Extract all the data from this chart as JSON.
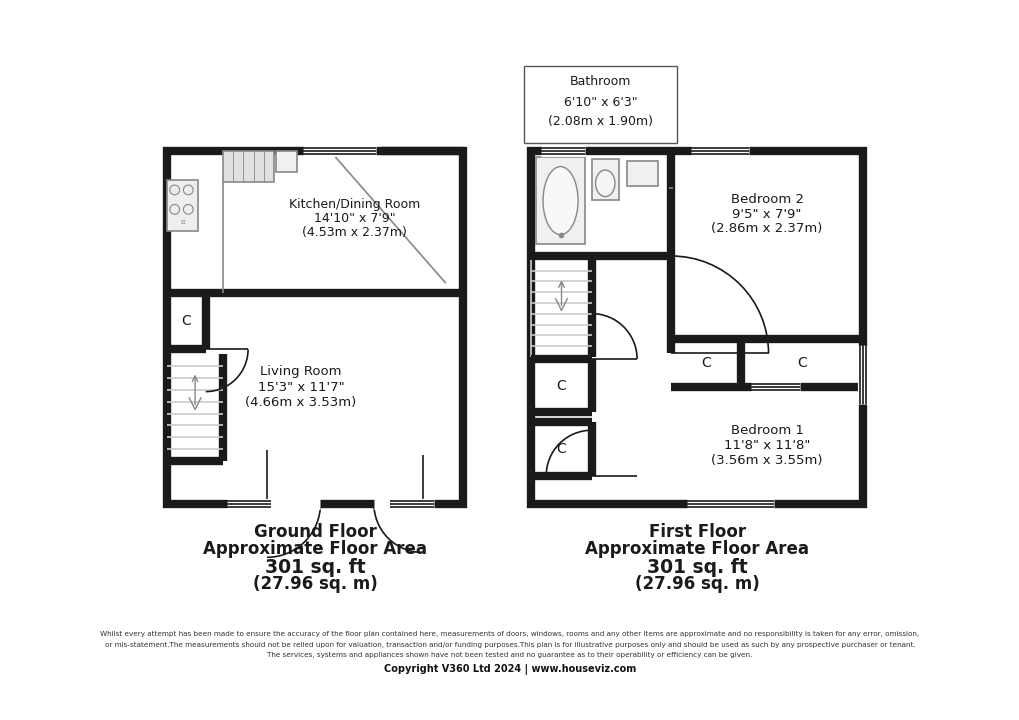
{
  "bg_color": "#ffffff",
  "wall_color": "#1a1a1a",
  "ground_floor_label": [
    "Ground Floor",
    "Approximate Floor Area",
    "301 sq. ft",
    "(27.96 sq. m)"
  ],
  "first_floor_label": [
    "First Floor",
    "Approximate Floor Area",
    "301 sq. ft",
    "(27.96 sq. m)"
  ],
  "bathroom_label": [
    "Bathroom",
    "6'10\" x 6'3\"",
    "(2.08m x 1.90m)"
  ],
  "kitchen_label": [
    "Kitchen/Dining Room",
    "14'10\" x 7'9\"",
    "(4.53m x 2.37m)"
  ],
  "living_label": [
    "Living Room",
    "15'3\" x 11'7\"",
    "(4.66m x 3.53m)"
  ],
  "bed2_label": [
    "Bedroom 2",
    "9'5\" x 7'9\"",
    "(2.86m x 2.37m)"
  ],
  "bed1_label": [
    "Bedroom 1",
    "11'8\" x 11'8\"",
    "(3.56m x 3.55m)"
  ],
  "footer_line1": "Whilst every attempt has been made to ensure the accuracy of the floor plan contained here, measurements of doors, windows, rooms and any other items are approximate and no responsibility is taken for any error, omission,",
  "footer_line2": "or mis-statement.The measurements should not be relied upon for valuation, transaction and/or funding purposes.This plan is for illustrative purposes only and should be used as such by any prospective purchaser or tenant.",
  "footer_line3": "The services, systems and appliances shown have not been tested and no guarantee as to their operability or efficiency can be given.",
  "footer_copyright": "Copyright V360 Ltd 2024 | www.houseviz.com"
}
